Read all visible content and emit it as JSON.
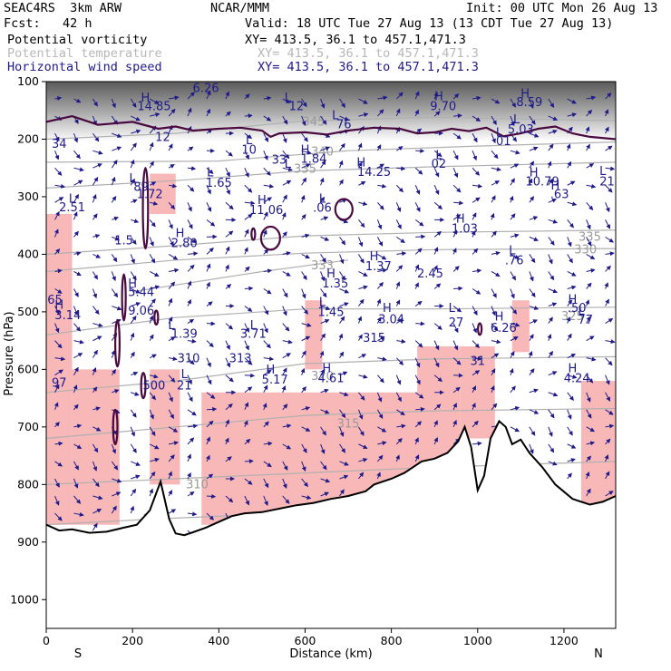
{
  "header": {
    "model": "SEAC4RS  3km ARW",
    "org": "NCAR/MMM",
    "init": "Init: 00 UTC Mon 26 Aug 13",
    "fcst": "Fcst:   42 h",
    "valid": "Valid: 18 UTC Tue 27 Aug 13 (13 CDT Tue 27 Aug 13)",
    "fields": [
      {
        "name": "Potential vorticity",
        "xy": "XY= 413.5, 36.1 to 457.1,471.3",
        "color": "#000000"
      },
      {
        "name": "Potential temperature",
        "xy": "XY= 413.5, 36.1 to 457.1,471.3",
        "color": "#b8b8b8"
      },
      {
        "name": "Horizontal wind speed",
        "xy": "XY= 413.5, 36.1 to 457.1,471.3",
        "color": "#1f1a8a"
      }
    ]
  },
  "chart_data": {
    "type": "cross-section",
    "xlabel": "Distance (km)",
    "ylabel": "Pressure (hPa)",
    "xlim": [
      0,
      1320
    ],
    "ylim": [
      1050,
      100
    ],
    "xticks": [
      0,
      200,
      400,
      600,
      800,
      1000,
      1200
    ],
    "yticks": [
      100,
      200,
      300,
      400,
      500,
      600,
      700,
      800,
      900,
      1000
    ],
    "x_end_labels": {
      "left": "S",
      "right": "N"
    },
    "colors": {
      "pv_contour": "#4a0a40",
      "theta": "#b0b0b0",
      "wind": "#1f1a8a",
      "shade": "#f8b8b8",
      "terrain": "#000000"
    },
    "theta_contours": [
      {
        "label": "345",
        "points": [
          [
            0,
            200
          ],
          [
            300,
            190
          ],
          [
            600,
            168
          ],
          [
            900,
            162
          ],
          [
            1320,
            168
          ]
        ],
        "label_at": [
          620,
          170
        ]
      },
      {
        "label": "340",
        "points": [
          [
            0,
            240
          ],
          [
            400,
            238
          ],
          [
            700,
            220
          ],
          [
            1000,
            212
          ],
          [
            1320,
            205
          ]
        ],
        "label_at": [
          640,
          222
        ]
      },
      {
        "label": "335",
        "points": [
          [
            0,
            285
          ],
          [
            300,
            272
          ],
          [
            600,
            255
          ],
          [
            900,
            248
          ],
          [
            1320,
            240
          ]
        ],
        "label_at": [
          600,
          252
        ]
      },
      {
        "label": "335",
        "points": [
          [
            0,
            400
          ],
          [
            300,
            385
          ],
          [
            600,
            368
          ],
          [
            900,
            362
          ],
          [
            1320,
            358
          ]
        ],
        "label_at": [
          1260,
          370
        ]
      },
      {
        "label": "330",
        "points": [
          [
            0,
            430
          ],
          [
            300,
            410
          ],
          [
            600,
            398
          ],
          [
            900,
            392
          ],
          [
            1320,
            390
          ]
        ],
        "label_at": [
          1250,
          392
        ]
      },
      {
        "label": "333",
        "points": [
          [
            200,
            465
          ],
          [
            500,
            430
          ],
          [
            700,
            410
          ]
        ],
        "label_at": [
          640,
          420
        ]
      },
      {
        "label": "325",
        "points": [
          [
            0,
            540
          ],
          [
            300,
            510
          ],
          [
            600,
            495
          ],
          [
            900,
            495
          ],
          [
            1320,
            492
          ]
        ],
        "label_at": [
          1220,
          508
        ]
      },
      {
        "label": "320",
        "points": [
          [
            0,
            640
          ],
          [
            300,
            620
          ],
          [
            600,
            590
          ],
          [
            900,
            582
          ],
          [
            1320,
            578
          ]
        ],
        "label_at": [
          640,
          612
        ]
      },
      {
        "label": "315",
        "points": [
          [
            0,
            720
          ],
          [
            300,
            700
          ],
          [
            600,
            680
          ],
          [
            900,
            672
          ],
          [
            1320,
            668
          ]
        ],
        "label_at": [
          700,
          695
        ]
      },
      {
        "label": "310",
        "points": [
          [
            0,
            800
          ],
          [
            300,
            790
          ],
          [
            600,
            780
          ],
          [
            900,
            770
          ],
          [
            1320,
            760
          ]
        ],
        "label_at": [
          350,
          800
        ]
      },
      {
        "label": "305",
        "points": [
          [
            0,
            870
          ],
          [
            250,
            860
          ],
          [
            500,
            852
          ]
        ],
        "label_at": [
          250,
          860
        ]
      }
    ],
    "terrain_profile": [
      [
        0,
        870
      ],
      [
        30,
        880
      ],
      [
        60,
        878
      ],
      [
        100,
        884
      ],
      [
        140,
        882
      ],
      [
        180,
        875
      ],
      [
        210,
        870
      ],
      [
        240,
        845
      ],
      [
        265,
        795
      ],
      [
        285,
        860
      ],
      [
        300,
        885
      ],
      [
        320,
        888
      ],
      [
        340,
        883
      ],
      [
        370,
        875
      ],
      [
        400,
        865
      ],
      [
        430,
        855
      ],
      [
        460,
        850
      ],
      [
        500,
        848
      ],
      [
        540,
        842
      ],
      [
        580,
        836
      ],
      [
        620,
        832
      ],
      [
        660,
        825
      ],
      [
        700,
        820
      ],
      [
        740,
        812
      ],
      [
        760,
        800
      ],
      [
        800,
        790
      ],
      [
        830,
        780
      ],
      [
        850,
        770
      ],
      [
        870,
        760
      ],
      [
        900,
        755
      ],
      [
        930,
        745
      ],
      [
        955,
        725
      ],
      [
        970,
        700
      ],
      [
        985,
        735
      ],
      [
        1000,
        810
      ],
      [
        1015,
        785
      ],
      [
        1030,
        720
      ],
      [
        1050,
        690
      ],
      [
        1065,
        700
      ],
      [
        1080,
        730
      ],
      [
        1100,
        722
      ],
      [
        1120,
        745
      ],
      [
        1150,
        770
      ],
      [
        1180,
        800
      ],
      [
        1220,
        825
      ],
      [
        1260,
        835
      ],
      [
        1290,
        830
      ],
      [
        1320,
        820
      ]
    ],
    "pv_2pvu_contour": [
      [
        0,
        170
      ],
      [
        60,
        160
      ],
      [
        120,
        175
      ],
      [
        200,
        170
      ],
      [
        260,
        182
      ],
      [
        300,
        178
      ],
      [
        340,
        185
      ],
      [
        400,
        182
      ],
      [
        450,
        180
      ],
      [
        500,
        185
      ],
      [
        520,
        196
      ],
      [
        540,
        190
      ],
      [
        600,
        188
      ],
      [
        650,
        192
      ],
      [
        700,
        185
      ],
      [
        760,
        180
      ],
      [
        820,
        182
      ],
      [
        860,
        190
      ],
      [
        900,
        188
      ],
      [
        940,
        182
      ],
      [
        980,
        186
      ],
      [
        1020,
        180
      ],
      [
        1060,
        195
      ],
      [
        1100,
        190
      ],
      [
        1140,
        182
      ],
      [
        1180,
        178
      ],
      [
        1220,
        190
      ],
      [
        1260,
        196
      ],
      [
        1320,
        200
      ]
    ],
    "pv_blobs": [
      {
        "cx": 230,
        "cy": 320,
        "rx": 6,
        "ry": 70
      },
      {
        "cx": 255,
        "cy": 510,
        "rx": 4,
        "ry": 12
      },
      {
        "cx": 165,
        "cy": 555,
        "rx": 5,
        "ry": 40
      },
      {
        "cx": 160,
        "cy": 700,
        "rx": 5,
        "ry": 30
      },
      {
        "cx": 225,
        "cy": 628,
        "rx": 5,
        "ry": 22
      },
      {
        "cx": 520,
        "cy": 372,
        "rx": 22,
        "ry": 20
      },
      {
        "cx": 690,
        "cy": 322,
        "rx": 20,
        "ry": 18
      },
      {
        "cx": 1005,
        "cy": 530,
        "rx": 3,
        "ry": 10
      },
      {
        "cx": 480,
        "cy": 365,
        "rx": 3,
        "ry": 10
      },
      {
        "cx": 180,
        "cy": 475,
        "rx": 3,
        "ry": 40
      }
    ],
    "shading": [
      {
        "x0": 0,
        "x1": 60,
        "p0": 330,
        "p1": 870
      },
      {
        "x0": 60,
        "x1": 170,
        "p0": 600,
        "p1": 870
      },
      {
        "x0": 240,
        "x1": 300,
        "p0": 260,
        "p1": 330
      },
      {
        "x0": 240,
        "x1": 310,
        "p0": 600,
        "p1": 800
      },
      {
        "x0": 360,
        "x1": 900,
        "p0": 640,
        "p1": 870
      },
      {
        "x0": 600,
        "x1": 640,
        "p0": 480,
        "p1": 600
      },
      {
        "x0": 860,
        "x1": 960,
        "p0": 560,
        "p1": 760
      },
      {
        "x0": 960,
        "x1": 1040,
        "p0": 560,
        "p1": 720
      },
      {
        "x0": 1080,
        "x1": 1120,
        "p0": 480,
        "p1": 570
      },
      {
        "x0": 1240,
        "x1": 1320,
        "p0": 620,
        "p1": 850
      }
    ],
    "hl_labels": [
      {
        "t": "H",
        "x": 230,
        "p": 170
      },
      {
        "t": "14.85",
        "x": 250,
        "p": 200
      },
      {
        "t": "6.26",
        "x": 370,
        "p": 136
      },
      {
        "t": "L",
        "x": 560,
        "p": 170
      },
      {
        "t": "12",
        "x": 580,
        "p": 200
      },
      {
        "t": "H",
        "x": 910,
        "p": 165
      },
      {
        "t": "9.70",
        "x": 920,
        "p": 200
      },
      {
        "t": "H",
        "x": 1110,
        "p": 155
      },
      {
        "t": "8.59",
        "x": 1120,
        "p": 185
      },
      {
        "t": "L",
        "x": 670,
        "p": 230
      },
      {
        "t": "76",
        "x": 690,
        "p": 262
      },
      {
        "t": "L",
        "x": 1090,
        "p": 245
      },
      {
        "t": "5.03",
        "x": 1100,
        "p": 280
      },
      {
        "t": "12",
        "x": 270,
        "p": 307
      },
      {
        "t": "L",
        "x": 1050,
        "p": 290
      },
      {
        "t": "01",
        "x": 1060,
        "p": 320
      },
      {
        "t": "34",
        "x": 30,
        "p": 330
      },
      {
        "t": "L",
        "x": 470,
        "p": 318
      },
      {
        "t": "10",
        "x": 470,
        "p": 350
      },
      {
        "t": "H",
        "x": 600,
        "p": 350
      },
      {
        "t": "1.84",
        "x": 620,
        "p": 382
      },
      {
        "t": "L",
        "x": 560,
        "p": 400
      },
      {
        "t": "33",
        "x": 540,
        "p": 385
      },
      {
        "t": "H",
        "x": 730,
        "p": 395
      },
      {
        "t": "14.25",
        "x": 760,
        "p": 427
      },
      {
        "t": "L",
        "x": 910,
        "p": 370
      },
      {
        "t": "02",
        "x": 910,
        "p": 400
      },
      {
        "t": "H",
        "x": 1130,
        "p": 430
      },
      {
        "t": "10.79",
        "x": 1150,
        "p": 460
      },
      {
        "t": "L",
        "x": 1290,
        "p": 425
      },
      {
        "t": "21",
        "x": 1300,
        "p": 460
      },
      {
        "t": "L",
        "x": 200,
        "p": 450
      },
      {
        "t": "89",
        "x": 220,
        "p": 480
      },
      {
        "t": "L",
        "x": 380,
        "p": 430
      },
      {
        "t": "1.65",
        "x": 400,
        "p": 465
      },
      {
        "t": "1.72",
        "x": 240,
        "p": 505
      },
      {
        "t": "H",
        "x": 1180,
        "p": 475
      },
      {
        "t": ".63",
        "x": 1190,
        "p": 505
      },
      {
        "t": "L",
        "x": 60,
        "p": 520
      },
      {
        "t": "2.51",
        "x": 60,
        "p": 550
      },
      {
        "t": "H",
        "x": 500,
        "p": 525
      },
      {
        "t": "11.06",
        "x": 510,
        "p": 560
      },
      {
        "t": "L",
        "x": 640,
        "p": 520
      },
      {
        "t": ".06",
        "x": 640,
        "p": 552
      },
      {
        "t": "H",
        "x": 960,
        "p": 590
      },
      {
        "t": "1.03",
        "x": 970,
        "p": 625
      },
      {
        "t": "1.5",
        "x": 180,
        "p": 665
      },
      {
        "t": "H",
        "x": 310,
        "p": 640
      },
      {
        "t": "2.80",
        "x": 320,
        "p": 675
      },
      {
        "t": "L",
        "x": 1080,
        "p": 700
      },
      {
        "t": ".76",
        "x": 1085,
        "p": 735
      },
      {
        "t": "H",
        "x": 760,
        "p": 720
      },
      {
        "t": "1.37",
        "x": 770,
        "p": 755
      },
      {
        "t": "2.45",
        "x": 890,
        "p": 780
      },
      {
        "t": "H",
        "x": 660,
        "p": 780
      },
      {
        "t": "1.35",
        "x": 670,
        "p": 815
      },
      {
        "t": "H",
        "x": 200,
        "p": 815
      },
      {
        "t": "5.44",
        "x": 220,
        "p": 845
      },
      {
        "t": "65",
        "x": 20,
        "p": 872
      },
      {
        "t": "H",
        "x": 30,
        "p": 890
      },
      {
        "t": "3.14",
        "x": 50,
        "p": 925
      },
      {
        "t": "9.06",
        "x": 220,
        "p": 910
      },
      {
        "t": "L",
        "x": 640,
        "p": 880
      },
      {
        "t": "1.45",
        "x": 660,
        "p": 915
      },
      {
        "t": "H",
        "x": 1220,
        "p": 870
      },
      {
        "t": ".50",
        "x": 1230,
        "p": 900
      },
      {
        "t": "L",
        "x": 1240,
        "p": 910
      },
      {
        "t": "77",
        "x": 1250,
        "p": 942
      },
      {
        "t": "H",
        "x": 790,
        "p": 900
      },
      {
        "t": "3.04",
        "x": 800,
        "p": 940
      },
      {
        "t": "L",
        "x": 940,
        "p": 900
      },
      {
        "t": "27",
        "x": 950,
        "p": 950
      },
      {
        "t": "H",
        "x": 1050,
        "p": 930
      },
      {
        "t": "6.26",
        "x": 1060,
        "p": 970
      },
      {
        "t": "L",
        "x": 290,
        "p": 960
      },
      {
        "t": "1.39",
        "x": 320,
        "p": 990
      },
      {
        "t": "L",
        "x": 480,
        "p": 960
      },
      {
        "t": "3.71",
        "x": 480,
        "p": 990
      },
      {
        "t": "H",
        "x": 520,
        "p": 1115
      },
      {
        "t": "5.17",
        "x": 530,
        "p": 1150
      },
      {
        "t": "H",
        "x": 650,
        "p": 1110
      },
      {
        "t": "4.61",
        "x": 660,
        "p": 1145
      },
      {
        "t": "H",
        "x": 1220,
        "p": 1110
      },
      {
        "t": "4.24",
        "x": 1230,
        "p": 1145
      },
      {
        "t": "97",
        "x": 30,
        "p": 1160
      },
      {
        "t": "L",
        "x": 320,
        "p": 1130
      },
      {
        "t": "21",
        "x": 320,
        "p": 1170
      },
      {
        "t": "500",
        "x": 250,
        "p": 1170
      },
      {
        "t": "310",
        "x": 330,
        "p": 1075
      },
      {
        "t": "313",
        "x": 450,
        "p": 1075
      },
      {
        "t": "315",
        "x": 760,
        "p": 1005
      },
      {
        "t": "31",
        "x": 1000,
        "p": 1085
      }
    ]
  }
}
